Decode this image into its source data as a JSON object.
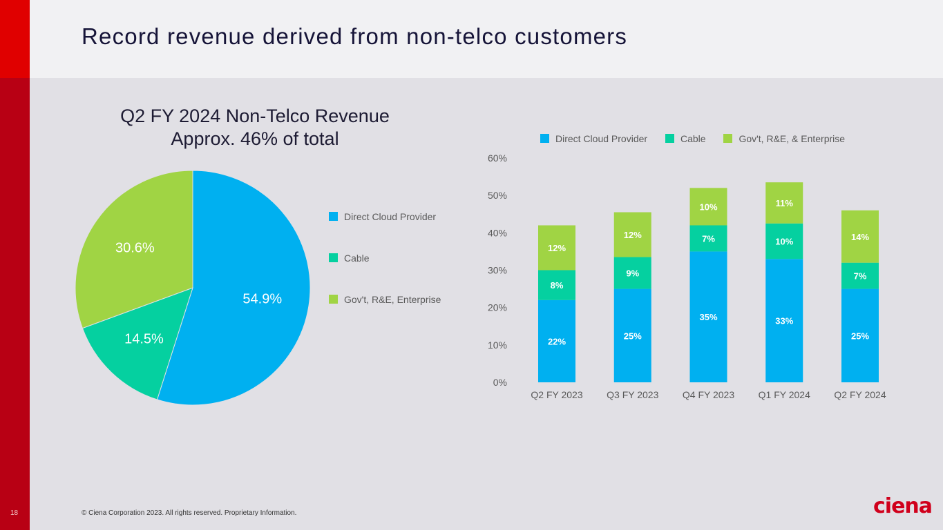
{
  "slide": {
    "title": "Record revenue derived from non-telco customers",
    "page_number": "18",
    "footer": "© Ciena Corporation 2023. All rights reserved. Proprietary Information.",
    "logo_text": "ciena"
  },
  "colors": {
    "direct_cloud": "#00b0f0",
    "cable": "#05d0a0",
    "govt": "#a0d444",
    "brand_red": "#e00000"
  },
  "chart_data": [
    {
      "type": "pie",
      "title": "Q2 FY 2024 Non-Telco Revenue",
      "subtitle": "Approx. 46% of total",
      "legend_position": "right",
      "slices": [
        {
          "label": "Direct Cloud Provider",
          "value": 54.9,
          "display": "54.9%",
          "color": "#00b0f0"
        },
        {
          "label": "Cable",
          "value": 14.5,
          "display": "14.5%",
          "color": "#05d0a0"
        },
        {
          "label": "Gov't, R&E, Enterprise",
          "value": 30.6,
          "display": "30.6%",
          "color": "#a0d444"
        }
      ]
    },
    {
      "type": "bar",
      "stacked": true,
      "title": "",
      "xlabel": "",
      "ylabel": "",
      "ylim": [
        0,
        60
      ],
      "yticks": [
        "0%",
        "10%",
        "20%",
        "30%",
        "40%",
        "50%",
        "60%"
      ],
      "ytick_values": [
        0,
        10,
        20,
        30,
        40,
        50,
        60
      ],
      "grid": false,
      "legend_position": "top",
      "categories": [
        "Q2 FY 2023",
        "Q3 FY 2023",
        "Q4 FY 2023",
        "Q1 FY 2024",
        "Q2 FY 2024"
      ],
      "series": [
        {
          "name": "Direct Cloud Provider",
          "color": "#00b0f0",
          "values": [
            22,
            25,
            35,
            33,
            25
          ],
          "labels": [
            "22%",
            "25%",
            "35%",
            "33%",
            "25%"
          ]
        },
        {
          "name": "Cable",
          "color": "#05d0a0",
          "values": [
            8,
            8.5,
            7,
            9.5,
            7
          ],
          "labels": [
            "8%",
            "9%",
            "7%",
            "10%",
            "7%"
          ]
        },
        {
          "name": "Gov't, R&E, & Enterprise",
          "color": "#a0d444",
          "values": [
            12,
            12,
            10,
            11,
            14
          ],
          "labels": [
            "12%",
            "12%",
            "10%",
            "11%",
            "14%"
          ]
        }
      ]
    }
  ]
}
